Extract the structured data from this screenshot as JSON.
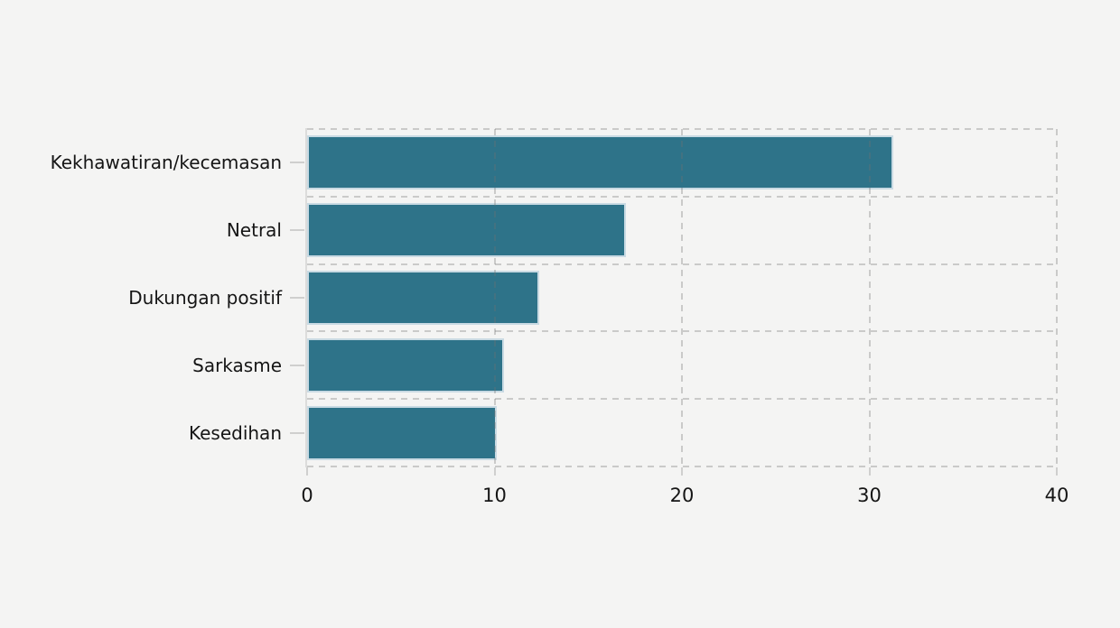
{
  "chart_data": {
    "type": "bar",
    "orientation": "horizontal",
    "title": "",
    "xlabel": "",
    "ylabel": "",
    "categories": [
      "Kekhawatiran/kecemasan",
      "Netral",
      "Dukungan positif",
      "Sarkasme",
      "Kesedihan"
    ],
    "values": [
      31.3,
      17.0,
      12.4,
      10.5,
      10.1
    ],
    "xlim": [
      0,
      40
    ],
    "xticks": [
      0,
      10,
      20,
      30,
      40
    ],
    "grid": "dashed",
    "legend": "none",
    "colors": {
      "bar_fill": "#2e7389",
      "bar_border": "#c9dae3",
      "background": "#f4f4f3",
      "gridline": "#c8c8c7",
      "axis_spine": "#dcdcdb",
      "tick_mark": "#cfcfce",
      "text": "#151515"
    }
  }
}
